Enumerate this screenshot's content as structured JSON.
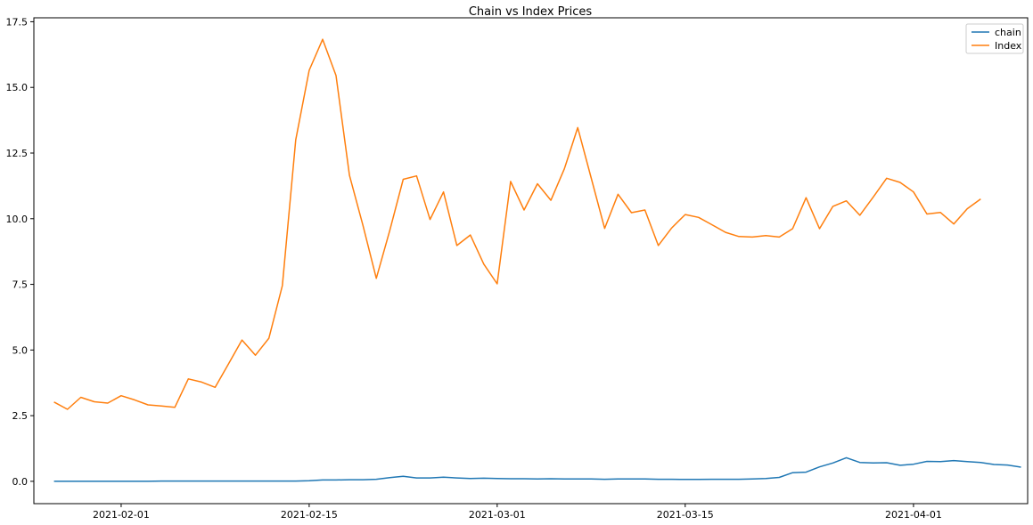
{
  "chart_data": {
    "type": "line",
    "title": "Chain vs Index Prices",
    "xlabel": "",
    "ylabel": "",
    "x_start": "2021-01-27",
    "x_step_days": 1,
    "xlim": [
      "2021-01-25T12:00",
      "2021-04-09T12:00"
    ],
    "ylim": [
      -0.85,
      17.65
    ],
    "x_ticks": [
      "2021-02-01",
      "2021-02-15",
      "2021-03-01",
      "2021-03-15",
      "2021-04-01"
    ],
    "y_ticks": [
      "0.0",
      "2.5",
      "5.0",
      "7.5",
      "10.0",
      "12.5",
      "15.0",
      "17.5"
    ],
    "legend_position": "top-right",
    "grid": false,
    "series": [
      {
        "name": "chain",
        "color": "#1f77b4",
        "values": [
          0.0,
          0.0,
          0.0,
          0.0,
          0.0,
          0.0,
          0.0,
          0.0,
          0.01,
          0.01,
          0.01,
          0.01,
          0.01,
          0.01,
          0.01,
          0.01,
          0.01,
          0.01,
          0.01,
          0.02,
          0.05,
          0.05,
          0.06,
          0.06,
          0.08,
          0.14,
          0.19,
          0.13,
          0.13,
          0.16,
          0.13,
          0.11,
          0.12,
          0.11,
          0.1,
          0.1,
          0.09,
          0.1,
          0.09,
          0.09,
          0.09,
          0.08,
          0.09,
          0.09,
          0.09,
          0.08,
          0.08,
          0.07,
          0.07,
          0.08,
          0.08,
          0.08,
          0.09,
          0.11,
          0.15,
          0.33,
          0.35,
          0.55,
          0.7,
          0.9,
          0.72,
          0.7,
          0.71,
          0.61,
          0.65,
          0.76,
          0.75,
          0.79,
          0.75,
          0.72,
          0.64,
          0.62,
          0.54
        ]
      },
      {
        "name": "Index",
        "color": "#ff7f0e",
        "values": [
          3.02,
          2.74,
          3.2,
          3.03,
          2.98,
          3.26,
          3.1,
          2.91,
          2.87,
          2.82,
          3.9,
          3.78,
          3.58,
          4.48,
          5.38,
          4.8,
          5.45,
          7.45,
          13.0,
          15.65,
          16.83,
          15.45,
          11.65,
          9.75,
          7.73,
          9.55,
          11.5,
          11.63,
          9.97,
          11.02,
          8.98,
          9.38,
          8.27,
          7.52,
          11.42,
          10.33,
          11.33,
          10.7,
          11.9,
          13.47,
          11.55,
          9.63,
          10.93,
          10.23,
          10.33,
          8.98,
          9.65,
          10.16,
          10.05,
          9.77,
          9.48,
          9.32,
          9.3,
          9.36,
          9.3,
          9.62,
          10.8,
          9.62,
          10.47,
          10.68,
          10.13,
          10.82,
          11.54,
          11.38,
          11.02,
          10.18,
          10.24,
          9.8,
          10.38,
          10.75
        ]
      }
    ]
  }
}
